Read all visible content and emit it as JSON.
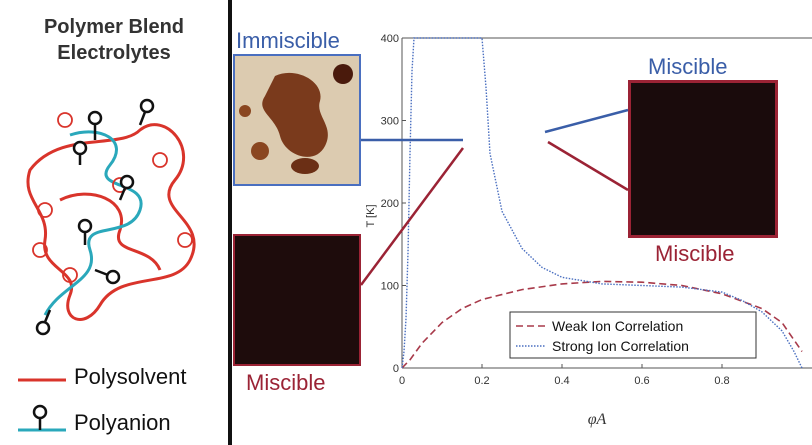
{
  "left_panel": {
    "title_line1": "Polymer Blend",
    "title_line2": "Electrolytes",
    "legend": [
      {
        "label": "Polysolvent",
        "icon": "red-line"
      },
      {
        "label": "Polyanion",
        "icon": "anion-lollipop-cyan-line"
      }
    ]
  },
  "photos": {
    "immiscible_label": "Immiscible",
    "miscible_label_bottom_left": "Miscible",
    "miscible_label_top_right": "Miscible",
    "miscible_label_bottom_right": "Miscible"
  },
  "colors": {
    "polysolvent": "#d9342b",
    "polyanion": "#2aa8bb",
    "blue_label": "#3a5ea8",
    "red_label": "#9b2335",
    "weak_curve": "#a83a4a",
    "strong_curve": "#4a6fc0"
  },
  "chart_data": {
    "type": "line",
    "xlabel": "φA",
    "ylabel": "T [K]",
    "xlim": [
      0,
      1
    ],
    "ylim": [
      0,
      400
    ],
    "x_ticks": [
      "0",
      "0.2",
      "0.4",
      "0.6",
      "0.8"
    ],
    "y_ticks": [
      "0",
      "100",
      "200",
      "300",
      "400"
    ],
    "series": [
      {
        "name": "Weak Ion Correlation",
        "style": "dashed",
        "color": "#a83a4a",
        "x": [
          0.0,
          0.02,
          0.05,
          0.1,
          0.15,
          0.2,
          0.3,
          0.4,
          0.5,
          0.6,
          0.7,
          0.8,
          0.9,
          0.95,
          1.0
        ],
        "y": [
          0,
          10,
          30,
          55,
          72,
          83,
          95,
          102,
          105,
          104,
          100,
          90,
          72,
          55,
          20
        ]
      },
      {
        "name": "Strong Ion Correlation",
        "style": "dotted",
        "color": "#4a6fc0",
        "x": [
          0.0,
          0.005,
          0.01,
          0.015,
          0.02,
          0.025,
          0.03,
          0.03,
          0.2,
          0.21,
          0.22,
          0.25,
          0.3,
          0.35,
          0.4,
          0.5,
          0.6,
          0.7,
          0.8,
          0.85,
          0.9,
          0.95,
          0.98,
          1.0
        ],
        "y": [
          0,
          20,
          60,
          140,
          260,
          360,
          400,
          400,
          400,
          340,
          260,
          190,
          145,
          122,
          110,
          102,
          100,
          98,
          92,
          82,
          68,
          45,
          20,
          0
        ]
      }
    ]
  }
}
